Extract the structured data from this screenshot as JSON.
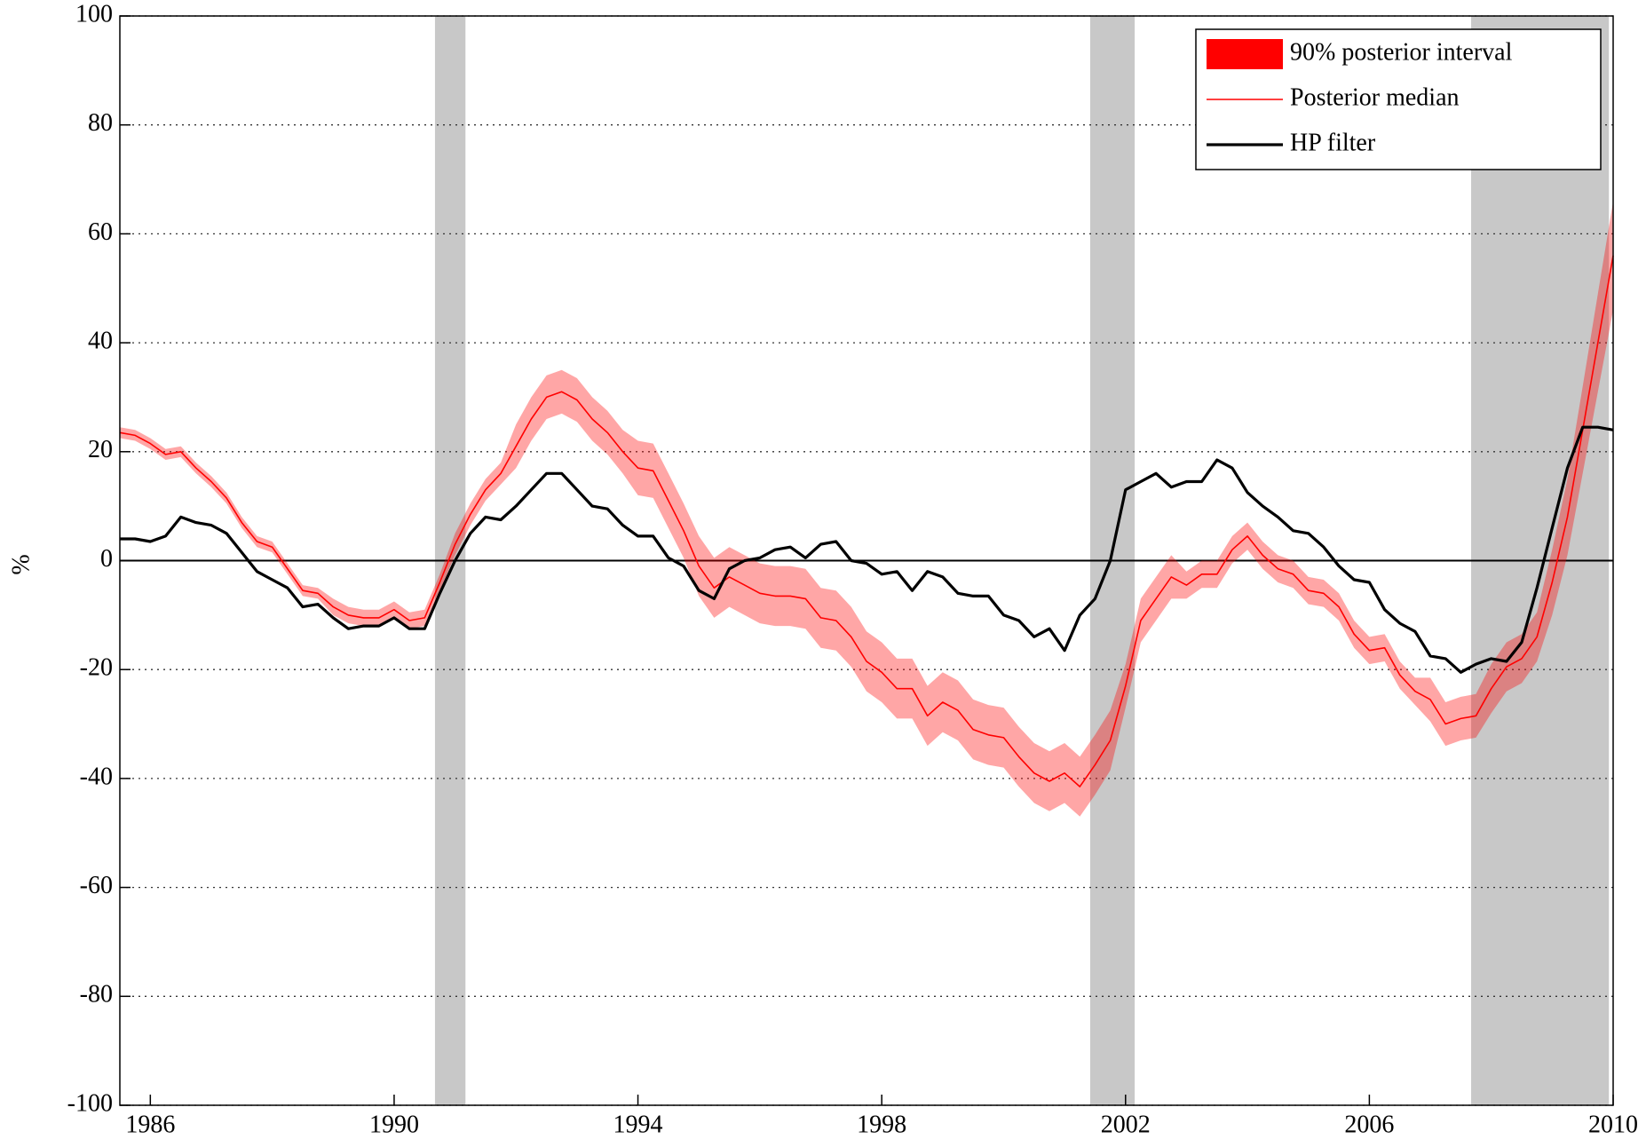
{
  "chart_data": {
    "type": "line",
    "ylabel": "%",
    "xlim": [
      1985.5,
      2010
    ],
    "ylim": [
      -100,
      100
    ],
    "xticks": [
      1986,
      1990,
      1994,
      1998,
      2002,
      2006,
      2010
    ],
    "yticks": [
      -100,
      -80,
      -60,
      -40,
      -20,
      0,
      20,
      40,
      60,
      80,
      100
    ],
    "grid": true,
    "legend": "upper right",
    "shaded_regions": [
      [
        1990.67,
        1991.17
      ],
      [
        2001.42,
        2002.15
      ],
      [
        2007.67,
        2009.93
      ]
    ],
    "shade_color": "#c8c8c8",
    "x": [
      1985.5,
      1985.75,
      1986,
      1986.25,
      1986.5,
      1986.75,
      1987,
      1987.25,
      1987.5,
      1987.75,
      1988,
      1988.25,
      1988.5,
      1988.75,
      1989,
      1989.25,
      1989.5,
      1989.75,
      1990,
      1990.25,
      1990.5,
      1990.75,
      1991,
      1991.25,
      1991.5,
      1991.75,
      1992,
      1992.25,
      1992.5,
      1992.75,
      1993,
      1993.25,
      1993.5,
      1993.75,
      1994,
      1994.25,
      1994.5,
      1994.75,
      1995,
      1995.25,
      1995.5,
      1995.75,
      1996,
      1996.25,
      1996.5,
      1996.75,
      1997,
      1997.25,
      1997.5,
      1997.75,
      1998,
      1998.25,
      1998.5,
      1998.75,
      1999,
      1999.25,
      1999.5,
      1999.75,
      2000,
      2000.25,
      2000.5,
      2000.75,
      2001,
      2001.25,
      2001.5,
      2001.75,
      2002,
      2002.25,
      2002.5,
      2002.75,
      2003,
      2003.25,
      2003.5,
      2003.75,
      2004,
      2004.25,
      2004.5,
      2004.75,
      2005,
      2005.25,
      2005.5,
      2005.75,
      2006,
      2006.25,
      2006.5,
      2006.75,
      2007,
      2007.25,
      2007.5,
      2007.75,
      2008,
      2008.25,
      2008.5,
      2008.75,
      2009,
      2009.25,
      2009.5,
      2009.75,
      2010
    ],
    "series": [
      {
        "name": "90% posterior interval",
        "color": "#ff0000",
        "lower": [
          22.5,
          22,
          20.5,
          18.5,
          19,
          16,
          13.5,
          10.5,
          6,
          2.5,
          1.5,
          -2.5,
          -6.5,
          -7,
          -10,
          -11.5,
          -12,
          -12,
          -10.5,
          -12.5,
          -12,
          -5.5,
          1,
          6.5,
          11,
          14,
          17,
          22,
          26,
          27,
          25.5,
          22,
          19.5,
          16,
          12,
          11.5,
          6,
          0.5,
          -6.5,
          -10.5,
          -8.5,
          -10,
          -11.5,
          -12,
          -12,
          -12.5,
          -16,
          -16.5,
          -19.5,
          -24,
          -26,
          -29,
          -29,
          -34,
          -31.5,
          -33,
          -36.5,
          -37.5,
          -38,
          -41.5,
          -44.5,
          -46,
          -44.5,
          -47,
          -43,
          -38.5,
          -27,
          -15,
          -11,
          -7,
          -7,
          -5,
          -5,
          -0.5,
          2,
          -1.5,
          -4,
          -5,
          -8,
          -8.5,
          -11,
          -16,
          -19,
          -18.5,
          -23.5,
          -26.5,
          -29.5,
          -34,
          -33,
          -32.5,
          -28,
          -24,
          -22.5,
          -18.5,
          -10,
          1,
          16,
          31,
          46
        ],
        "upper": [
          24.5,
          24,
          22.5,
          20.5,
          21,
          18,
          15.5,
          12.5,
          8,
          4.5,
          3.5,
          -0.5,
          -4.5,
          -5,
          -7,
          -8.5,
          -9,
          -9,
          -7.5,
          -9.5,
          -9,
          -2.5,
          5,
          10.5,
          15,
          18,
          25,
          30,
          34,
          35,
          33.5,
          30,
          27.5,
          24,
          22,
          21.5,
          16,
          10.5,
          4.5,
          0.5,
          2.5,
          1,
          -0.5,
          -1,
          -1,
          -1.5,
          -5,
          -5.5,
          -8.5,
          -13,
          -15,
          -18,
          -18,
          -23,
          -20.5,
          -22,
          -25.5,
          -26.5,
          -27,
          -30.5,
          -33.5,
          -35,
          -33.5,
          -36,
          -32,
          -27.5,
          -19,
          -7,
          -3,
          1,
          -2,
          0,
          0,
          4.5,
          7,
          3.5,
          1,
          0,
          -3,
          -3.5,
          -6,
          -11,
          -14,
          -13.5,
          -18.5,
          -21.5,
          -21.5,
          -26,
          -25,
          -24.5,
          -19,
          -15,
          -13.5,
          -9.5,
          2,
          15,
          32,
          49,
          66
        ]
      },
      {
        "name": "Posterior median",
        "color": "#ff0000",
        "values": [
          23.5,
          23,
          21.5,
          19.5,
          20,
          17,
          14.5,
          11.5,
          7,
          3.5,
          2.5,
          -1.5,
          -5.5,
          -6,
          -8.5,
          -10,
          -10.5,
          -10.5,
          -9,
          -11,
          -10.5,
          -4,
          3,
          8.5,
          13,
          16,
          21,
          26,
          30,
          31,
          29.5,
          26,
          23.5,
          20,
          17,
          16.5,
          11,
          5.5,
          -1,
          -5,
          -3,
          -4.5,
          -6,
          -6.5,
          -6.5,
          -7,
          -10.5,
          -11,
          -14,
          -18.5,
          -20.5,
          -23.5,
          -23.5,
          -28.5,
          -26,
          -27.5,
          -31,
          -32,
          -32.5,
          -36,
          -39,
          -40.5,
          -39,
          -41.5,
          -37.5,
          -33,
          -23,
          -11,
          -7,
          -3,
          -4.5,
          -2.5,
          -2.5,
          2,
          4.5,
          1,
          -1.5,
          -2.5,
          -5.5,
          -6,
          -8.5,
          -13.5,
          -16.5,
          -16,
          -21,
          -24,
          -25.5,
          -30,
          -29,
          -28.5,
          -23.5,
          -19.5,
          -18,
          -14,
          -4,
          8,
          24,
          40,
          56
        ]
      },
      {
        "name": "HP filter",
        "color": "#000000",
        "values": [
          4,
          4,
          3.5,
          4.5,
          8,
          7,
          6.5,
          5,
          1.5,
          -2,
          -3.5,
          -5,
          -8.5,
          -8,
          -10.5,
          -12.5,
          -12,
          -12,
          -10.5,
          -12.5,
          -12.5,
          -6,
          0,
          5,
          8,
          7.5,
          10,
          13,
          16,
          16,
          13,
          10,
          9.5,
          6.5,
          4.5,
          4.5,
          0.5,
          -1,
          -5.5,
          -7,
          -1.5,
          0,
          0.5,
          2,
          2.5,
          0.5,
          3,
          3.5,
          0,
          -0.5,
          -2.5,
          -2,
          -5.5,
          -2,
          -3,
          -6,
          -6.5,
          -6.5,
          -10,
          -11,
          -14,
          -12.5,
          -16.5,
          -10,
          -7,
          0,
          13,
          14.5,
          16,
          13.5,
          14.5,
          14.5,
          18.5,
          17,
          12.5,
          10,
          8,
          5.5,
          5,
          2.5,
          -1,
          -3.5,
          -4,
          -9,
          -11.5,
          -13,
          -17.5,
          -18,
          -20.5,
          -19,
          -18,
          -18.5,
          -15,
          -5,
          6,
          17,
          24.5,
          24.5,
          24
        ]
      }
    ]
  }
}
